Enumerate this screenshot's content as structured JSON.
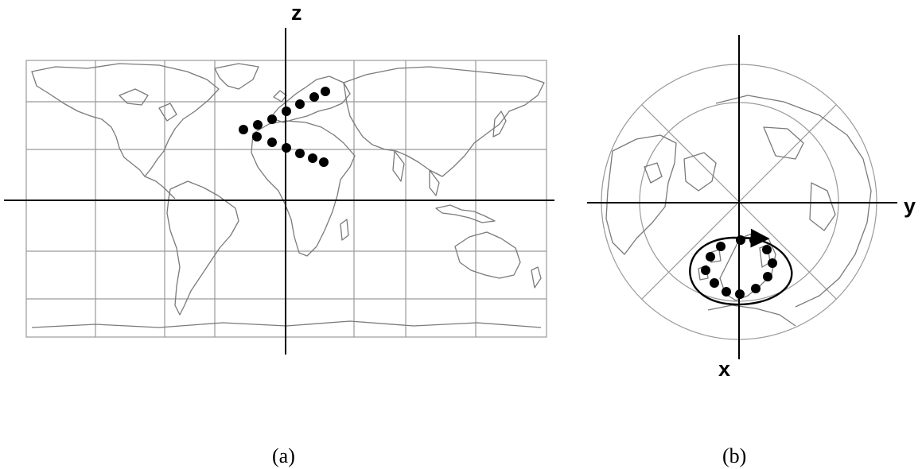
{
  "panel_a": {
    "axis_label": "z",
    "caption": "(a)"
  },
  "panel_b": {
    "axis_label_horizontal": "y",
    "axis_label_vertical": "x",
    "caption": "(b)",
    "rotation_arrow": "clockwise-arrow"
  },
  "colors": {
    "axis": "#000000",
    "grid": "#9a9a9a",
    "coastline": "#7a7a7a",
    "markers": "#000000"
  }
}
